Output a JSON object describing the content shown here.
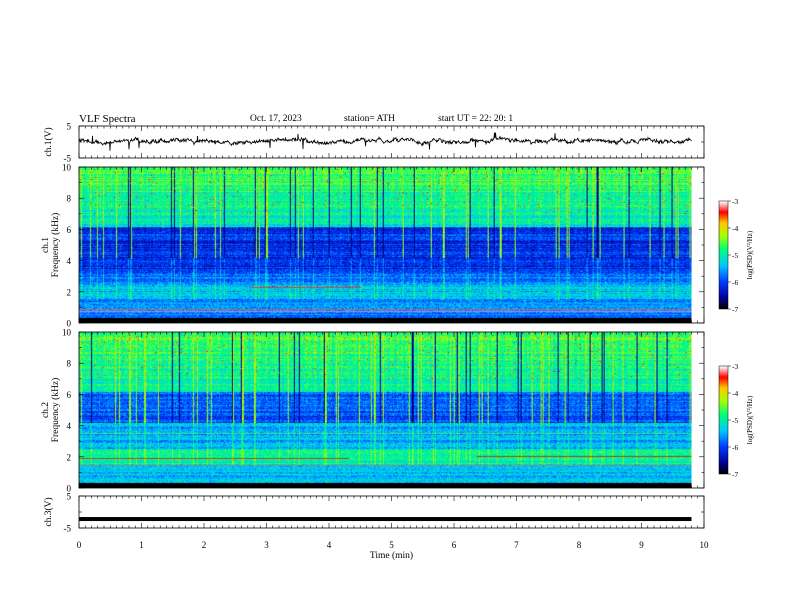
{
  "header": {
    "title": "VLF  Spectra",
    "date": "Oct. 17, 2023",
    "station": "station= ATH",
    "start": "start  UT  =    22: 20: 1"
  },
  "chart_data": [
    {
      "type": "line",
      "name": "ch1-waveform",
      "ylabel": "ch.1(V)",
      "ylim": [
        -5,
        5
      ],
      "yticks": [
        "5",
        "-5"
      ],
      "xlim": [
        0,
        10
      ],
      "data_end_min": 9.8,
      "baseline_v": 0.3,
      "color": "#000000"
    },
    {
      "type": "heatmap",
      "name": "ch1-spectrogram",
      "ylabel": "ch.1 Frequency (kHz)",
      "ylabel_lines": [
        "ch.1",
        "Frequency (kHz)"
      ],
      "ylim": [
        0,
        10
      ],
      "yticks": [
        "0",
        "2",
        "4",
        "6",
        "8",
        "10"
      ],
      "xlim": [
        0,
        10
      ],
      "data_end_min": 9.8,
      "colorbar": {
        "label": "log(PSD)(V²/Hz)",
        "range": [
          -7,
          -3
        ],
        "ticks": [
          "-3",
          "-4",
          "-5",
          "-6",
          "-7"
        ]
      }
    },
    {
      "type": "heatmap",
      "name": "ch2-spectrogram",
      "ylabel": "ch.2 Frequency (kHz)",
      "ylabel_lines": [
        "ch.2",
        "Frequency (kHz)"
      ],
      "ylim": [
        0,
        10
      ],
      "yticks": [
        "0",
        "2",
        "4",
        "6",
        "8",
        "10"
      ],
      "xlim": [
        0,
        10
      ],
      "data_end_min": 9.8,
      "colorbar": {
        "label": "log(PSD)(V²/Hz)",
        "range": [
          -7,
          -3
        ],
        "ticks": [
          "-3",
          "-4",
          "-5",
          "-6",
          "-7"
        ]
      }
    },
    {
      "type": "line",
      "name": "ch3-waveform",
      "ylabel": "ch.3(V)",
      "ylim": [
        -5,
        5
      ],
      "yticks": [
        "5",
        "-5"
      ],
      "xlim": [
        0,
        10
      ],
      "data_end_min": 9.8,
      "baseline_v": -2.2,
      "color": "#000000",
      "xlabel": "Time  (min)",
      "xticks": [
        "0",
        "1",
        "2",
        "3",
        "4",
        "5",
        "6",
        "7",
        "8",
        "9",
        "10"
      ]
    }
  ]
}
